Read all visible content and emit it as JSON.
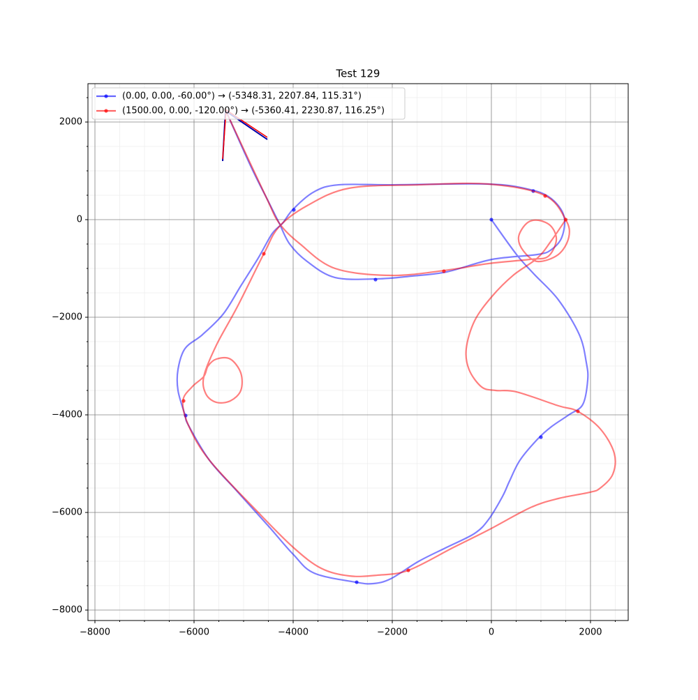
{
  "chart_data": {
    "type": "line",
    "title": "Test 129",
    "xlim": [
      -8141,
      2761
    ],
    "ylim": [
      -8214,
      2786
    ],
    "xticks": [
      {
        "value": -8000,
        "label": "−8000"
      },
      {
        "value": -6000,
        "label": "−6000"
      },
      {
        "value": -4000,
        "label": "−4000"
      },
      {
        "value": -2000,
        "label": "−2000"
      },
      0,
      2000
    ],
    "yticks": [
      {
        "value": -8000,
        "label": "−8000"
      },
      {
        "value": -6000,
        "label": "−6000"
      },
      {
        "value": -4000,
        "label": "−4000"
      },
      {
        "value": -2000,
        "label": "−2000"
      },
      0,
      2000
    ],
    "xminor": [
      -7500,
      -7000,
      -6500,
      -5500,
      -5000,
      -4500,
      -3500,
      -3000,
      -2500,
      -1500,
      -1000,
      -500,
      500,
      1000,
      1500,
      2500
    ],
    "yminor": [
      -7500,
      -7000,
      -6500,
      -5500,
      -5000,
      -4500,
      -3500,
      -3000,
      -2500,
      -1500,
      -1000,
      -500,
      500,
      1000,
      1500,
      2500
    ],
    "grid": true,
    "legend": "upper left",
    "series": [
      {
        "name": "(0.00, 0.00, -60.00°) → (-5348.31, 2207.84, 115.31°)",
        "color": "#0000ff",
        "x": [
          0,
          507,
          859,
          1352,
          1775,
          1916,
          1944,
          1845,
          1563,
          1211,
          930,
          577,
          366,
          225,
          -56,
          -338,
          -901,
          -1465,
          -2028,
          -2380,
          -2732,
          -3577,
          -4000,
          -4493,
          -5127,
          -5690,
          -6113,
          -6183,
          -6324,
          -6324,
          -6183,
          -5831,
          -5408,
          -5056,
          -4704,
          -4423,
          -4211,
          -4000,
          -3577,
          -3085,
          -2028,
          -56,
          789,
          1211,
          1465,
          1423,
          1211,
          930,
          14,
          -901,
          -1606,
          -2310,
          -3155,
          -3718,
          -4070,
          -4282,
          -4493,
          -4845,
          -5348
        ],
        "values": [
          0,
          -714,
          -1114,
          -1643,
          -2357,
          -2929,
          -3286,
          -3786,
          -4000,
          -4243,
          -4500,
          -4929,
          -5357,
          -5671,
          -6143,
          -6429,
          -6714,
          -7000,
          -7357,
          -7457,
          -7429,
          -7243,
          -6857,
          -6286,
          -5571,
          -4929,
          -4214,
          -4000,
          -3500,
          -3071,
          -2643,
          -2357,
          -1929,
          -1357,
          -786,
          -286,
          -71,
          214,
          571,
          714,
          714,
          729,
          614,
          429,
          71,
          -357,
          -614,
          -714,
          -814,
          -1071,
          -1157,
          -1214,
          -1186,
          -857,
          -500,
          -71,
          357,
          1071,
          2208
        ],
        "marker_x": [
          0,
          845,
          -3986,
          -2338,
          -6169,
          -2718,
          1000
        ],
        "marker_y": [
          0,
          586,
          200,
          -1229,
          -4014,
          -7429,
          -4457
        ]
      },
      {
        "name": "(1500.00, 0.00, -120.00°) → (-5360.41, 2230.87, 116.25°)",
        "color": "#ff0000",
        "x": [
          1500,
          1211,
          930,
          437,
          14,
          -338,
          -507,
          -451,
          -197,
          85,
          507,
          1352,
          1746,
          2197,
          2479,
          2451,
          2197,
          1986,
          1352,
          789,
          -56,
          -761,
          -1676,
          -2310,
          -2873,
          -3437,
          -4000,
          -4704,
          -5690,
          -6113,
          -6225,
          -6042,
          -5803,
          -5718,
          -5549,
          -5268,
          -5056,
          -5056,
          -5268,
          -5549,
          -5761,
          -5803,
          -5549,
          -5127,
          -4592,
          -4282,
          -3718,
          -2873,
          -1465,
          -56,
          1070,
          1500,
          1563,
          1352,
          930,
          648,
          549,
          718,
          958,
          1211,
          1310,
          1141,
          789,
          -56,
          -958,
          -2028,
          -3155,
          -3859,
          -4282,
          -4563,
          -5360
        ],
        "values": [
          0,
          -429,
          -786,
          -1143,
          -1571,
          -2071,
          -2643,
          -3071,
          -3429,
          -3500,
          -3529,
          -3814,
          -3929,
          -4286,
          -4786,
          -5214,
          -5500,
          -5586,
          -5714,
          -5900,
          -6357,
          -6714,
          -7186,
          -7286,
          -7300,
          -7143,
          -6714,
          -6000,
          -4929,
          -4214,
          -3714,
          -3429,
          -3214,
          -3000,
          -2857,
          -2857,
          -3143,
          -3500,
          -3714,
          -3743,
          -3571,
          -3214,
          -2571,
          -1786,
          -700,
          -143,
          286,
          643,
          714,
          729,
          500,
          0,
          -357,
          -714,
          -857,
          -643,
          -357,
          -71,
          -14,
          -143,
          -429,
          -757,
          -814,
          -900,
          -1043,
          -1143,
          -1000,
          -500,
          -71,
          500,
          2231
        ],
        "marker_x": [
          1500,
          1085,
          -958,
          -4592,
          -6211,
          -1676,
          1746
        ],
        "marker_y": [
          0,
          486,
          -1057,
          -700,
          -3714,
          -7186,
          -3929
        ]
      }
    ]
  }
}
